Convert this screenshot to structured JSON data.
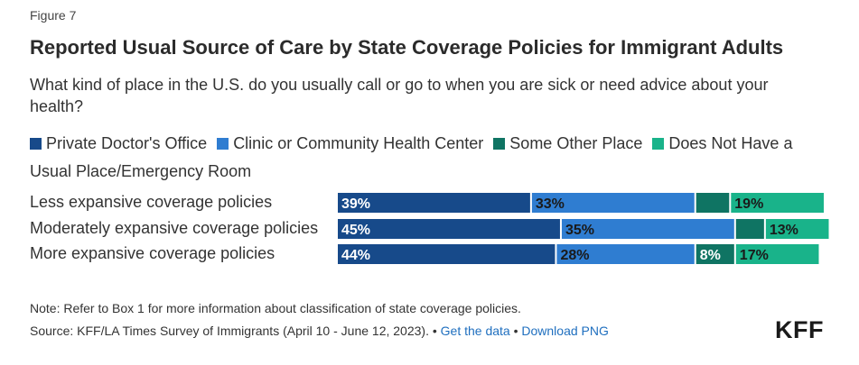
{
  "figure_label": "Figure 7",
  "title": "Reported Usual Source of Care by State Coverage Policies for Immigrant Adults",
  "subtitle": "What kind of place in the U.S. do you usually call or go to when you are sick or need advice about your health?",
  "chart_data": {
    "type": "bar",
    "orientation": "horizontal",
    "stacked": true,
    "categories": [
      "Less expansive coverage policies",
      "Moderately expansive coverage policies",
      "More expansive coverage policies"
    ],
    "series": [
      {
        "name": "Private Doctor's Office",
        "color": "#174a8a",
        "values": [
          39,
          45,
          44
        ],
        "labels": [
          "39%",
          "45%",
          "44%"
        ]
      },
      {
        "name": "Clinic or Community Health Center",
        "color": "#2f7dd1",
        "values": [
          33,
          35,
          28
        ],
        "labels": [
          "33%",
          "35%",
          "28%"
        ]
      },
      {
        "name": "Some Other Place",
        "color": "#0f7463",
        "values": [
          7,
          6,
          8
        ],
        "labels": [
          "",
          "",
          "8%"
        ]
      },
      {
        "name": "Does Not Have a Usual Place/Emergency Room",
        "color": "#19b38a",
        "values": [
          19,
          13,
          17
        ],
        "labels": [
          "19%",
          "13%",
          "17%"
        ]
      }
    ],
    "legend_position": "top",
    "grid": false
  },
  "footer": {
    "note": "Note: Refer to Box 1 for more information about classification of state coverage policies.",
    "source": "Source: KFF/LA Times Survey of Immigrants (April 10 - June 12, 2023). •",
    "get_data": "Get the data",
    "separator": "•",
    "download_png": "Download PNG",
    "logo": "KFF"
  }
}
